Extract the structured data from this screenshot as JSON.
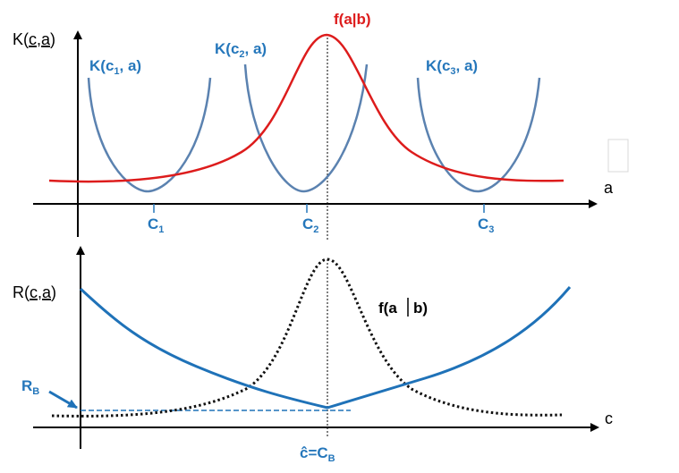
{
  "colors": {
    "axis": "#000000",
    "kernel": "#5b82b0",
    "posterior_top": "#dd1c1c",
    "risk": "#1f72b8",
    "posterior_bottom": "#111111",
    "label_blue": "#2577bb"
  },
  "top_panel": {
    "y_axis_label": {
      "main": "K(",
      "c": "c",
      "comma": ",",
      "a": "a",
      "close": ")"
    },
    "x_axis_label": "a",
    "kernel_labels": [
      {
        "pre": "K(c",
        "sub": "1",
        "post": ", a)"
      },
      {
        "pre": "K(c",
        "sub": "2",
        "post": ", a)"
      },
      {
        "pre": "K(c",
        "sub": "3",
        "post": ", a)"
      }
    ],
    "posterior_label": "f(a|b)",
    "tick_labels": [
      {
        "main": "C",
        "sub": "1"
      },
      {
        "main": "C",
        "sub": "2"
      },
      {
        "main": "C",
        "sub": "3"
      }
    ]
  },
  "bottom_panel": {
    "y_axis_label": {
      "main": "R(",
      "c": "c",
      "comma": ",",
      "a": "a",
      "close": ")"
    },
    "x_axis_label": "c",
    "posterior_label": {
      "left": "f(a",
      "right": "b)"
    },
    "bayes_risk_label": {
      "main": "R",
      "sub": "B"
    },
    "optimum_label": {
      "main": "ĉ=C",
      "sub": "B"
    }
  }
}
